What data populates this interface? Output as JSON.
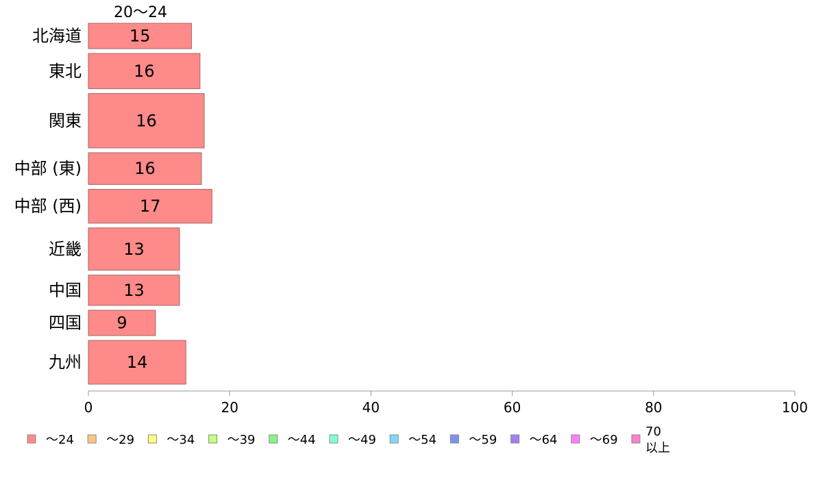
{
  "chart_data": {
    "type": "bar",
    "orientation": "horizontal",
    "column_header": "20～24",
    "categories": [
      "北海道",
      "東北",
      "関東",
      "中部 (東)",
      "中部 (西)",
      "近畿",
      "中国",
      "四国",
      "九州"
    ],
    "series": [
      {
        "name": "～24",
        "values": [
          14.6,
          15.8,
          16.4,
          16.0,
          17.5,
          12.9,
          12.9,
          9.5,
          13.8
        ],
        "labels": [
          "15",
          "16",
          "16",
          "16",
          "17",
          "13",
          "13",
          "9",
          "14"
        ]
      }
    ],
    "row_weights": [
      36,
      50,
      77,
      45,
      48,
      60,
      43,
      36,
      62
    ],
    "xlim": [
      0,
      100
    ],
    "xticks": [
      "0",
      "20",
      "40",
      "60",
      "80",
      "100"
    ],
    "grid": false,
    "legend": {
      "placement": "bottom",
      "items": [
        {
          "label": "～24",
          "color": "#ff8a8a"
        },
        {
          "label": "～29",
          "color": "#ffc47e"
        },
        {
          "label": "～34",
          "color": "#ffff80"
        },
        {
          "label": "～39",
          "color": "#c4ff80"
        },
        {
          "label": "～44",
          "color": "#86f586"
        },
        {
          "label": "～49",
          "color": "#80ffd8"
        },
        {
          "label": "～54",
          "color": "#80d8ff"
        },
        {
          "label": "～59",
          "color": "#8090f0"
        },
        {
          "label": "～64",
          "color": "#a080f0"
        },
        {
          "label": "～69",
          "color": "#ff80ff"
        },
        {
          "label": "70",
          "label2": "以上",
          "color": "#ff80d0"
        }
      ]
    }
  }
}
